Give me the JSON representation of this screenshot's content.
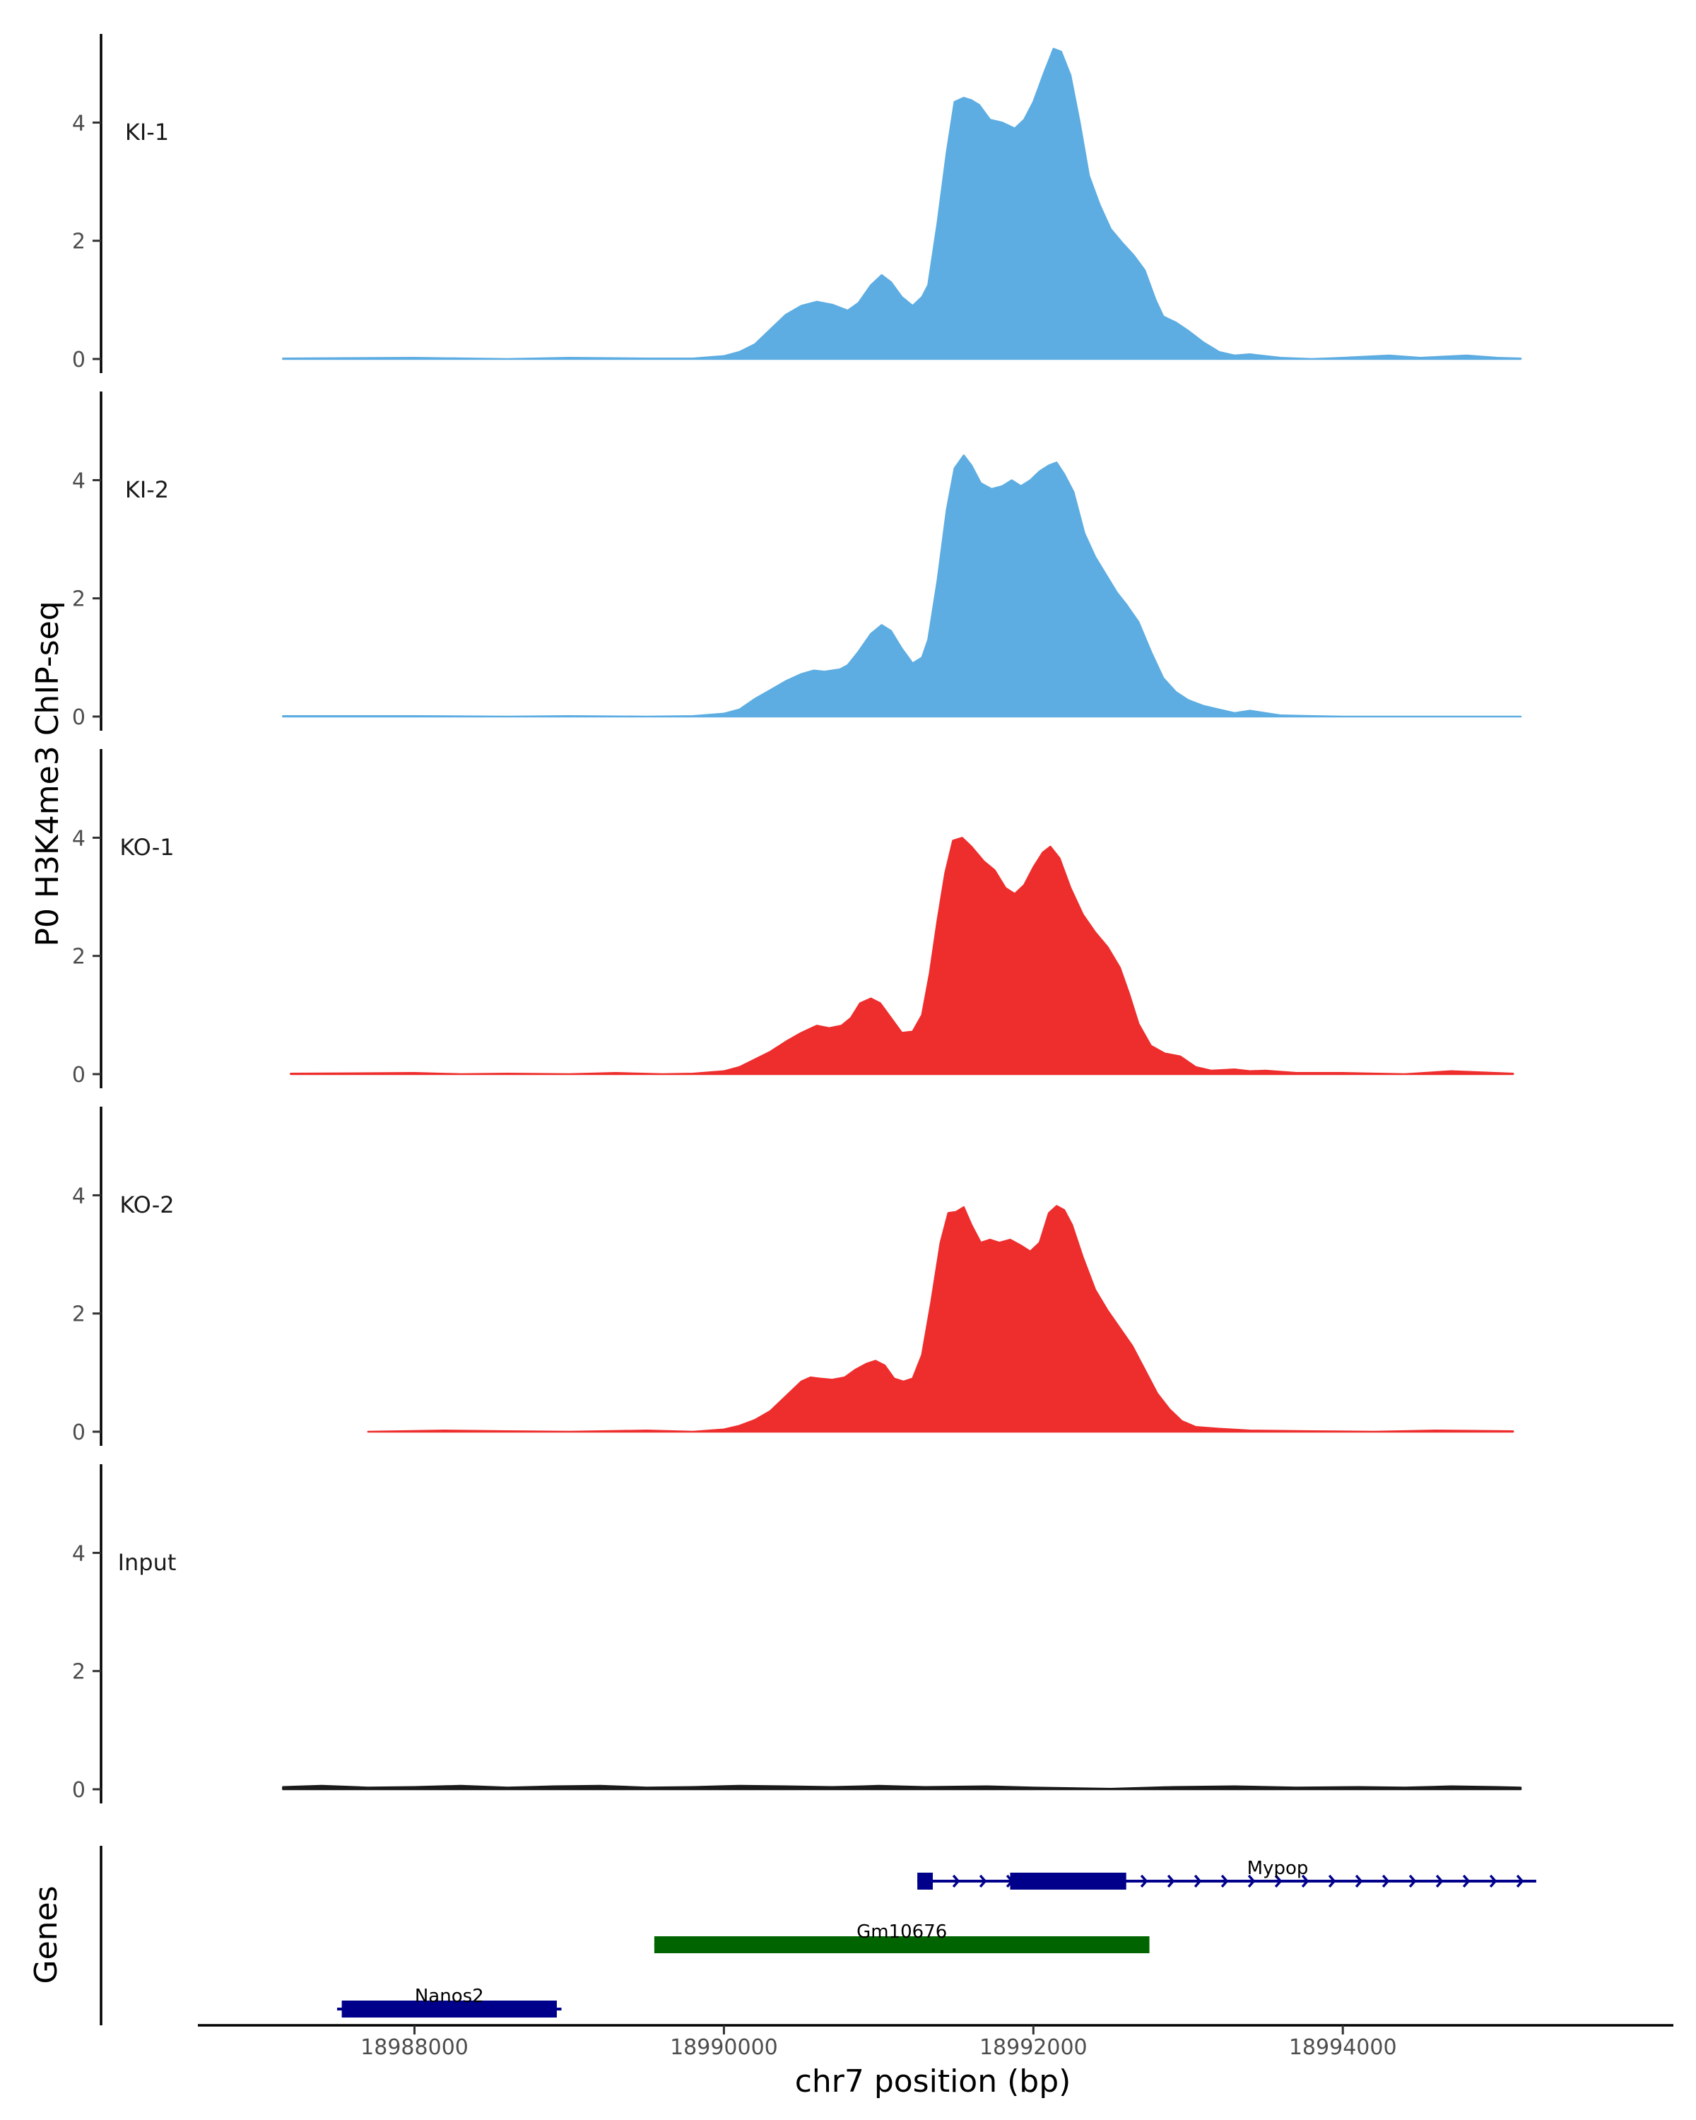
{
  "chart_data": {
    "type": "area",
    "title": "",
    "ylabel": "P0 H3K4me3 ChIP-seq",
    "xlabel": "chr7 position (bp)",
    "gene_panel_label": "Genes",
    "xlim": [
      18986600,
      18996100
    ],
    "ylim": [
      0,
      5.5
    ],
    "x_ticks": [
      18988000,
      18990000,
      18992000,
      18994000
    ],
    "x_tick_labels": [
      "18988000",
      "18990000",
      "18992000",
      "18994000"
    ],
    "y_ticks": [
      0,
      2,
      4
    ],
    "y_tick_labels": [
      "0",
      "2",
      "4"
    ],
    "tracks": [
      {
        "name": "KI-1",
        "color": "#5dade2",
        "points": [
          [
            18987150,
            0.01
          ],
          [
            18988000,
            0.02
          ],
          [
            18988600,
            0.0
          ],
          [
            18989000,
            0.02
          ],
          [
            18989500,
            0.01
          ],
          [
            18989800,
            0.01
          ],
          [
            18990000,
            0.05
          ],
          [
            18990100,
            0.12
          ],
          [
            18990200,
            0.25
          ],
          [
            18990300,
            0.5
          ],
          [
            18990400,
            0.75
          ],
          [
            18990500,
            0.9
          ],
          [
            18990600,
            0.97
          ],
          [
            18990700,
            0.92
          ],
          [
            18990800,
            0.82
          ],
          [
            18990870,
            0.95
          ],
          [
            18990950,
            1.25
          ],
          [
            18991020,
            1.42
          ],
          [
            18991080,
            1.3
          ],
          [
            18991150,
            1.05
          ],
          [
            18991220,
            0.9
          ],
          [
            18991280,
            1.05
          ],
          [
            18991320,
            1.25
          ],
          [
            18991380,
            2.3
          ],
          [
            18991440,
            3.5
          ],
          [
            18991490,
            4.35
          ],
          [
            18991550,
            4.42
          ],
          [
            18991600,
            4.38
          ],
          [
            18991650,
            4.3
          ],
          [
            18991720,
            4.05
          ],
          [
            18991800,
            4.0
          ],
          [
            18991880,
            3.9
          ],
          [
            18991940,
            4.05
          ],
          [
            18992000,
            4.35
          ],
          [
            18992070,
            4.85
          ],
          [
            18992130,
            5.25
          ],
          [
            18992180,
            5.2
          ],
          [
            18992240,
            4.8
          ],
          [
            18992300,
            4.0
          ],
          [
            18992360,
            3.1
          ],
          [
            18992430,
            2.6
          ],
          [
            18992500,
            2.2
          ],
          [
            18992580,
            1.95
          ],
          [
            18992650,
            1.75
          ],
          [
            18992720,
            1.5
          ],
          [
            18992790,
            1.0
          ],
          [
            18992840,
            0.72
          ],
          [
            18992920,
            0.62
          ],
          [
            18993000,
            0.48
          ],
          [
            18993100,
            0.28
          ],
          [
            18993200,
            0.12
          ],
          [
            18993300,
            0.06
          ],
          [
            18993400,
            0.08
          ],
          [
            18993600,
            0.02
          ],
          [
            18993800,
            0.0
          ],
          [
            18994000,
            0.02
          ],
          [
            18994300,
            0.06
          ],
          [
            18994500,
            0.02
          ],
          [
            18994800,
            0.06
          ],
          [
            18995000,
            0.02
          ],
          [
            18995150,
            0.01
          ]
        ]
      },
      {
        "name": "KI-2",
        "color": "#5dade2",
        "points": [
          [
            18987150,
            0.01
          ],
          [
            18988000,
            0.01
          ],
          [
            18988600,
            0.0
          ],
          [
            18989000,
            0.01
          ],
          [
            18989500,
            0.0
          ],
          [
            18989800,
            0.01
          ],
          [
            18990000,
            0.05
          ],
          [
            18990100,
            0.12
          ],
          [
            18990200,
            0.3
          ],
          [
            18990300,
            0.45
          ],
          [
            18990400,
            0.6
          ],
          [
            18990500,
            0.72
          ],
          [
            18990580,
            0.78
          ],
          [
            18990650,
            0.76
          ],
          [
            18990750,
            0.8
          ],
          [
            18990800,
            0.87
          ],
          [
            18990870,
            1.1
          ],
          [
            18990950,
            1.4
          ],
          [
            18991020,
            1.55
          ],
          [
            18991080,
            1.45
          ],
          [
            18991150,
            1.15
          ],
          [
            18991220,
            0.9
          ],
          [
            18991280,
            1.0
          ],
          [
            18991320,
            1.3
          ],
          [
            18991380,
            2.3
          ],
          [
            18991440,
            3.5
          ],
          [
            18991490,
            4.2
          ],
          [
            18991550,
            4.42
          ],
          [
            18991600,
            4.25
          ],
          [
            18991660,
            3.95
          ],
          [
            18991730,
            3.85
          ],
          [
            18991800,
            3.9
          ],
          [
            18991860,
            4.0
          ],
          [
            18991920,
            3.9
          ],
          [
            18991980,
            4.0
          ],
          [
            18992040,
            4.15
          ],
          [
            18992100,
            4.25
          ],
          [
            18992150,
            4.3
          ],
          [
            18992200,
            4.1
          ],
          [
            18992260,
            3.8
          ],
          [
            18992330,
            3.1
          ],
          [
            18992400,
            2.7
          ],
          [
            18992470,
            2.4
          ],
          [
            18992540,
            2.1
          ],
          [
            18992600,
            1.9
          ],
          [
            18992680,
            1.6
          ],
          [
            18992760,
            1.1
          ],
          [
            18992840,
            0.65
          ],
          [
            18992920,
            0.42
          ],
          [
            18993000,
            0.28
          ],
          [
            18993100,
            0.18
          ],
          [
            18993200,
            0.12
          ],
          [
            18993300,
            0.06
          ],
          [
            18993400,
            0.1
          ],
          [
            18993500,
            0.06
          ],
          [
            18993600,
            0.02
          ],
          [
            18993800,
            0.01
          ],
          [
            18994000,
            0.0
          ],
          [
            18994500,
            0.0
          ],
          [
            18995150,
            0.0
          ]
        ]
      },
      {
        "name": "KO-1",
        "color": "#ee2d2d",
        "points": [
          [
            18987200,
            0.01
          ],
          [
            18988000,
            0.02
          ],
          [
            18988300,
            0.0
          ],
          [
            18988600,
            0.01
          ],
          [
            18989000,
            0.0
          ],
          [
            18989300,
            0.02
          ],
          [
            18989600,
            0.0
          ],
          [
            18989800,
            0.01
          ],
          [
            18990000,
            0.05
          ],
          [
            18990100,
            0.12
          ],
          [
            18990200,
            0.25
          ],
          [
            18990300,
            0.38
          ],
          [
            18990400,
            0.55
          ],
          [
            18990500,
            0.7
          ],
          [
            18990600,
            0.82
          ],
          [
            18990680,
            0.78
          ],
          [
            18990760,
            0.82
          ],
          [
            18990820,
            0.95
          ],
          [
            18990880,
            1.2
          ],
          [
            18990950,
            1.28
          ],
          [
            18991010,
            1.2
          ],
          [
            18991080,
            0.95
          ],
          [
            18991150,
            0.7
          ],
          [
            18991220,
            0.72
          ],
          [
            18991280,
            1.0
          ],
          [
            18991330,
            1.7
          ],
          [
            18991380,
            2.6
          ],
          [
            18991430,
            3.4
          ],
          [
            18991480,
            3.95
          ],
          [
            18991540,
            4.0
          ],
          [
            18991600,
            3.85
          ],
          [
            18991680,
            3.6
          ],
          [
            18991750,
            3.45
          ],
          [
            18991820,
            3.15
          ],
          [
            18991880,
            3.05
          ],
          [
            18991940,
            3.2
          ],
          [
            18992000,
            3.5
          ],
          [
            18992060,
            3.75
          ],
          [
            18992110,
            3.85
          ],
          [
            18992170,
            3.65
          ],
          [
            18992240,
            3.15
          ],
          [
            18992320,
            2.7
          ],
          [
            18992400,
            2.4
          ],
          [
            18992480,
            2.15
          ],
          [
            18992560,
            1.8
          ],
          [
            18992620,
            1.35
          ],
          [
            18992680,
            0.85
          ],
          [
            18992760,
            0.48
          ],
          [
            18992850,
            0.35
          ],
          [
            18992950,
            0.3
          ],
          [
            18993050,
            0.12
          ],
          [
            18993150,
            0.06
          ],
          [
            18993300,
            0.08
          ],
          [
            18993400,
            0.05
          ],
          [
            18993500,
            0.06
          ],
          [
            18993700,
            0.02
          ],
          [
            18994000,
            0.02
          ],
          [
            18994400,
            0.0
          ],
          [
            18994700,
            0.05
          ],
          [
            18995100,
            0.01
          ]
        ]
      },
      {
        "name": "KO-2",
        "color": "#ee2d2d",
        "points": [
          [
            18987700,
            0.0
          ],
          [
            18988200,
            0.02
          ],
          [
            18988600,
            0.01
          ],
          [
            18989000,
            0.0
          ],
          [
            18989500,
            0.02
          ],
          [
            18989800,
            0.0
          ],
          [
            18990000,
            0.04
          ],
          [
            18990100,
            0.1
          ],
          [
            18990200,
            0.2
          ],
          [
            18990300,
            0.35
          ],
          [
            18990400,
            0.6
          ],
          [
            18990500,
            0.85
          ],
          [
            18990560,
            0.92
          ],
          [
            18990620,
            0.9
          ],
          [
            18990700,
            0.88
          ],
          [
            18990780,
            0.92
          ],
          [
            18990850,
            1.05
          ],
          [
            18990920,
            1.15
          ],
          [
            18990980,
            1.2
          ],
          [
            18991040,
            1.12
          ],
          [
            18991100,
            0.9
          ],
          [
            18991160,
            0.85
          ],
          [
            18991220,
            0.9
          ],
          [
            18991280,
            1.3
          ],
          [
            18991340,
            2.2
          ],
          [
            18991400,
            3.2
          ],
          [
            18991450,
            3.7
          ],
          [
            18991500,
            3.72
          ],
          [
            18991550,
            3.8
          ],
          [
            18991600,
            3.5
          ],
          [
            18991660,
            3.2
          ],
          [
            18991720,
            3.25
          ],
          [
            18991780,
            3.2
          ],
          [
            18991850,
            3.25
          ],
          [
            18991920,
            3.15
          ],
          [
            18991980,
            3.05
          ],
          [
            18992040,
            3.2
          ],
          [
            18992100,
            3.7
          ],
          [
            18992150,
            3.82
          ],
          [
            18992200,
            3.75
          ],
          [
            18992250,
            3.5
          ],
          [
            18992320,
            2.95
          ],
          [
            18992400,
            2.4
          ],
          [
            18992480,
            2.05
          ],
          [
            18992560,
            1.75
          ],
          [
            18992640,
            1.45
          ],
          [
            18992720,
            1.05
          ],
          [
            18992800,
            0.65
          ],
          [
            18992880,
            0.38
          ],
          [
            18992960,
            0.18
          ],
          [
            18993050,
            0.08
          ],
          [
            18993200,
            0.05
          ],
          [
            18993400,
            0.02
          ],
          [
            18993800,
            0.01
          ],
          [
            18994200,
            0.0
          ],
          [
            18994600,
            0.02
          ],
          [
            18995100,
            0.01
          ]
        ]
      },
      {
        "name": "Input",
        "color": "#1a1a1a",
        "points": [
          [
            18987150,
            0.04
          ],
          [
            18987400,
            0.06
          ],
          [
            18987700,
            0.03
          ],
          [
            18988000,
            0.04
          ],
          [
            18988300,
            0.06
          ],
          [
            18988600,
            0.03
          ],
          [
            18988900,
            0.05
          ],
          [
            18989200,
            0.06
          ],
          [
            18989500,
            0.03
          ],
          [
            18989800,
            0.04
          ],
          [
            18990100,
            0.06
          ],
          [
            18990400,
            0.05
          ],
          [
            18990700,
            0.04
          ],
          [
            18990900,
            0.05
          ],
          [
            18991000,
            0.06
          ],
          [
            18991300,
            0.04
          ],
          [
            18991700,
            0.05
          ],
          [
            18992000,
            0.03
          ],
          [
            18992500,
            0.01
          ],
          [
            18992900,
            0.04
          ],
          [
            18993300,
            0.05
          ],
          [
            18993700,
            0.03
          ],
          [
            18994100,
            0.04
          ],
          [
            18994400,
            0.03
          ],
          [
            18994700,
            0.05
          ],
          [
            18995000,
            0.04
          ],
          [
            18995150,
            0.03
          ]
        ]
      }
    ],
    "genes": [
      {
        "name": "Mypop",
        "color": "#00008b",
        "strand": "+",
        "start": 18991250,
        "end": 18995250,
        "exons": [
          [
            18991250,
            18991350
          ],
          [
            18991850,
            18992600
          ]
        ]
      },
      {
        "name": "Gm10676",
        "color": "#006400",
        "strand": "",
        "start": 18989550,
        "end": 18992750,
        "exons": [
          [
            18989550,
            18992750
          ]
        ]
      },
      {
        "name": "Nanos2",
        "color": "#00008b",
        "strand": "+",
        "start": 18987500,
        "end": 18988950,
        "exons": [
          [
            18987530,
            18988920
          ]
        ]
      }
    ]
  }
}
